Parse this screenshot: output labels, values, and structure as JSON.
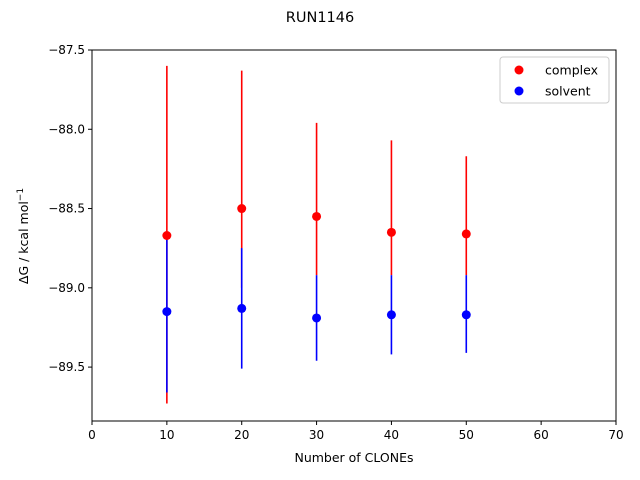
{
  "chart_data": {
    "type": "scatter",
    "title": "RUN1146",
    "xlabel": "Number of CLONEs",
    "ylabel": {
      "main": "ΔG / kcal mol",
      "sup": "−1"
    },
    "xlim": [
      0,
      70
    ],
    "ylim": [
      -89.84,
      -87.5
    ],
    "xticks": [
      0,
      10,
      20,
      30,
      40,
      50,
      60,
      70
    ],
    "xtick_labels": [
      "0",
      "10",
      "20",
      "30",
      "40",
      "50",
      "60",
      "70"
    ],
    "yticks": [
      -87.5,
      -88.0,
      -88.5,
      -89.0,
      -89.5
    ],
    "ytick_labels": [
      "−87.5",
      "−88.0",
      "−88.5",
      "−89.0",
      "−89.5"
    ],
    "grid": false,
    "legend_position": "top-right",
    "series": [
      {
        "name": "complex",
        "color": "#ff0000",
        "x": [
          10,
          20,
          30,
          40,
          50
        ],
        "y": [
          -88.67,
          -88.5,
          -88.55,
          -88.65,
          -88.66
        ],
        "err_low": [
          -89.73,
          -89.0,
          -88.92,
          -88.92,
          -88.92
        ],
        "err_high": [
          -87.6,
          -87.63,
          -87.96,
          -88.07,
          -88.17
        ]
      },
      {
        "name": "solvent",
        "color": "#0000ff",
        "x": [
          10,
          20,
          30,
          40,
          50
        ],
        "y": [
          -89.15,
          -89.13,
          -89.19,
          -89.17,
          -89.17
        ],
        "err_low": [
          -89.66,
          -89.51,
          -89.46,
          -89.42,
          -89.41
        ],
        "err_high": [
          -88.67,
          -88.75,
          -88.92,
          -88.92,
          -88.92
        ]
      }
    ]
  }
}
